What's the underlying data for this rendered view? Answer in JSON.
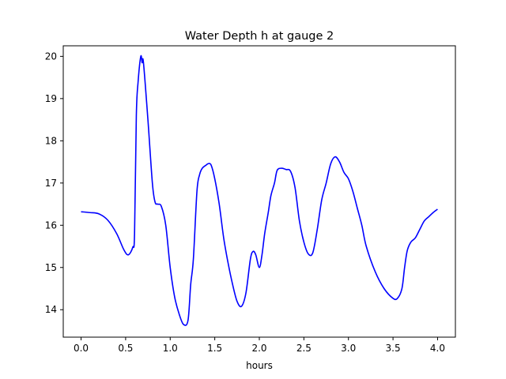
{
  "chart_data": {
    "type": "line",
    "title": "Water Depth h at gauge 2",
    "xlabel": "hours",
    "ylabel": "",
    "xlim": [
      -0.2,
      4.2
    ],
    "ylim": [
      13.35,
      20.25
    ],
    "xticks": [
      0.0,
      0.5,
      1.0,
      1.5,
      2.0,
      2.5,
      3.0,
      3.5,
      4.0
    ],
    "xtick_labels": [
      "0.0",
      "0.5",
      "1.0",
      "1.5",
      "2.0",
      "2.5",
      "3.0",
      "3.5",
      "4.0"
    ],
    "yticks": [
      14,
      15,
      16,
      17,
      18,
      19,
      20
    ],
    "ytick_labels": [
      "14",
      "15",
      "16",
      "17",
      "18",
      "19",
      "20"
    ],
    "grid": false,
    "colors": {
      "line": "#0000ff"
    },
    "series": [
      {
        "x": [
          0.0,
          0.1,
          0.2,
          0.3,
          0.4,
          0.48,
          0.53,
          0.58,
          0.6,
          0.62,
          0.64,
          0.67,
          0.685,
          0.7,
          0.75,
          0.8,
          0.83,
          0.86,
          0.9,
          0.95,
          1.0,
          1.05,
          1.1,
          1.15,
          1.2,
          1.23,
          1.26,
          1.3,
          1.33,
          1.36,
          1.4,
          1.43,
          1.46,
          1.5,
          1.55,
          1.6,
          1.65,
          1.7,
          1.75,
          1.8,
          1.85,
          1.9,
          1.93,
          1.96,
          2.0,
          2.03,
          2.06,
          2.1,
          2.13,
          2.17,
          2.2,
          2.25,
          2.3,
          2.35,
          2.4,
          2.45,
          2.5,
          2.55,
          2.6,
          2.65,
          2.7,
          2.75,
          2.8,
          2.85,
          2.9,
          2.95,
          3.0,
          3.05,
          3.1,
          3.15,
          3.2,
          3.3,
          3.4,
          3.5,
          3.55,
          3.6,
          3.63,
          3.66,
          3.7,
          3.75,
          3.8,
          3.85,
          3.9,
          3.95,
          4.0
        ],
        "y": [
          16.32,
          16.3,
          16.27,
          16.12,
          15.8,
          15.42,
          15.3,
          15.48,
          15.8,
          18.6,
          19.4,
          20.0,
          19.85,
          19.85,
          18.5,
          17.0,
          16.55,
          16.5,
          16.45,
          16.0,
          15.0,
          14.3,
          13.9,
          13.65,
          13.75,
          14.6,
          15.2,
          16.8,
          17.2,
          17.35,
          17.42,
          17.46,
          17.42,
          17.1,
          16.5,
          15.7,
          15.1,
          14.6,
          14.2,
          14.08,
          14.4,
          15.2,
          15.38,
          15.3,
          15.0,
          15.3,
          15.8,
          16.3,
          16.7,
          17.0,
          17.3,
          17.35,
          17.32,
          17.28,
          16.9,
          16.1,
          15.6,
          15.32,
          15.35,
          15.9,
          16.6,
          17.0,
          17.45,
          17.62,
          17.5,
          17.25,
          17.1,
          16.8,
          16.4,
          16.0,
          15.5,
          14.9,
          14.5,
          14.27,
          14.27,
          14.5,
          15.0,
          15.4,
          15.6,
          15.7,
          15.9,
          16.1,
          16.2,
          16.3,
          16.38
        ]
      }
    ]
  }
}
